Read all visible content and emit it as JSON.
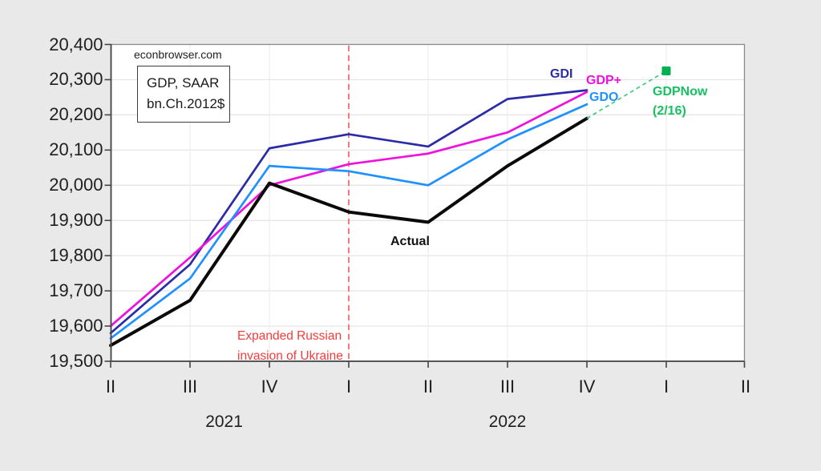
{
  "page": {
    "background": "#e9e9e9",
    "plot_background": "#ffffff"
  },
  "header": {
    "source": "econbrowser.com",
    "units_line1": "GDP, SAAR",
    "units_line2": "bn.Ch.2012$"
  },
  "chart_data": {
    "type": "line",
    "title": "GDP, SAAR bn.Ch.2012$",
    "x_categories": [
      "II",
      "III",
      "IV",
      "I",
      "II",
      "III",
      "IV",
      "I",
      "II"
    ],
    "year_labels": [
      {
        "text": "2021",
        "x_index": 1.43
      },
      {
        "text": "2022",
        "x_index": 5.0
      }
    ],
    "ylim": [
      19500,
      20400
    ],
    "ytick_step": 100,
    "grid": true,
    "series": [
      {
        "name": "GDI",
        "color": "#2b2ba8",
        "values": [
          19580,
          19775,
          20105,
          20145,
          20110,
          20245,
          20270
        ]
      },
      {
        "name": "GDP+",
        "color": "#ee11dd",
        "values": [
          19600,
          19795,
          20000,
          20060,
          20090,
          20150,
          20265
        ]
      },
      {
        "name": "GDO",
        "color": "#1e90ff",
        "values": [
          19565,
          19735,
          20055,
          20040,
          20000,
          20130,
          20230
        ]
      },
      {
        "name": "Actual",
        "color": "#0a0a0a",
        "values": [
          19545,
          19673,
          20006,
          19924,
          19895,
          20055,
          20190
        ]
      }
    ],
    "forecast_point": {
      "label": "GDPNow",
      "date_label": "(2/16)",
      "x_index": 7,
      "value": 20325,
      "marker_color": "#00b050",
      "connector_color": "#3ecb82",
      "text_color": "#17c161",
      "connects_from_series": "Actual"
    },
    "annotations": {
      "event_line": {
        "x_index": 3,
        "color": "#f87878",
        "text_line1": "Expanded Russian",
        "text_line2": "invasion of Ukraine",
        "text_color": "#f53c3c"
      },
      "actual_label": "Actual"
    }
  }
}
